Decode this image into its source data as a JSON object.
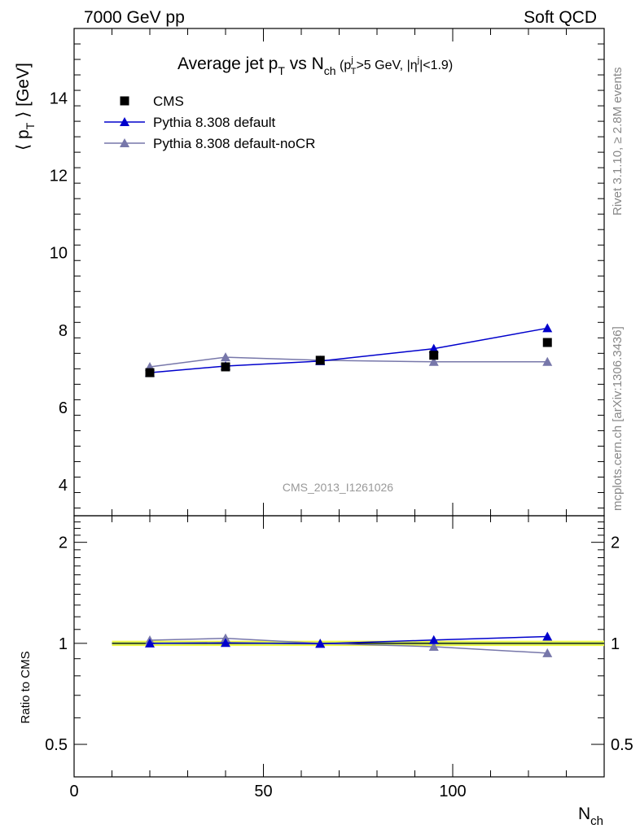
{
  "header": {
    "left": "7000 GeV pp",
    "right": "Soft QCD"
  },
  "side": {
    "rivet": "Rivet 3.1.10, ≥ 2.8M events",
    "source": "mcplots.cern.ch [arXiv:1306.3436]"
  },
  "watermark": "CMS_2013_I1261026",
  "title": {
    "main": "Average jet p",
    "main_sub": "T",
    "vs": " vs N",
    "vs_sub": "ch",
    "cut_open": " (p",
    "cut_sup": "j",
    "cut_sub": "T",
    "cut_mid": ">5 GeV, |η",
    "cut_sup2": "j",
    "cut_end": "|<1.9)"
  },
  "ylabel_main": "⟨ pₜ ⟩ [GeV]",
  "ylabel_main_parts": {
    "pre": "⟨ p",
    "sub": "T",
    "post": " ⟩ [GeV]"
  },
  "ylabel_ratio": "Ratio to CMS",
  "xlabel": {
    "main": "N",
    "sub": "ch"
  },
  "colors": {
    "cms": "#000000",
    "default": "#0000cc",
    "nocr": "#7777aa",
    "band_yellow": "#eef542",
    "band_green": "#b7e87a"
  },
  "chart_data": [
    {
      "type": "line",
      "panel": "main",
      "xlim": [
        0,
        140
      ],
      "ylim": [
        3.2,
        15.8
      ],
      "yticks": [
        4,
        6,
        8,
        10,
        12,
        14
      ],
      "series": [
        {
          "name": "CMS",
          "marker": "square",
          "x": [
            20,
            40,
            65,
            95,
            125
          ],
          "y": [
            6.9,
            7.05,
            7.22,
            7.35,
            7.68
          ]
        },
        {
          "name": "Pythia 8.308 default",
          "marker": "triangle",
          "x": [
            20,
            40,
            65,
            95,
            125
          ],
          "y": [
            6.9,
            7.07,
            7.2,
            7.52,
            8.05
          ]
        },
        {
          "name": "Pythia 8.308 default-noCR",
          "marker": "triangle",
          "x": [
            20,
            40,
            65,
            95,
            125
          ],
          "y": [
            7.05,
            7.3,
            7.22,
            7.18,
            7.18
          ]
        }
      ],
      "legend_position": "top-left"
    },
    {
      "type": "line",
      "panel": "ratio",
      "xlim": [
        0,
        140
      ],
      "ylim": [
        0.4,
        2.4
      ],
      "scale": "log",
      "yticks": [
        0.5,
        1,
        2
      ],
      "ytick_labels": [
        "0.5",
        "1",
        "2"
      ],
      "xticks": [
        0,
        50,
        100
      ],
      "xtick_labels": [
        "0",
        "50",
        "100"
      ],
      "band_x": [
        10,
        140
      ],
      "series": [
        {
          "name": "Pythia 8.308 default",
          "x": [
            20,
            40,
            65,
            95,
            125
          ],
          "y": [
            1.0,
            1.003,
            0.997,
            1.023,
            1.048
          ]
        },
        {
          "name": "Pythia 8.308 default-noCR",
          "x": [
            20,
            40,
            65,
            95,
            125
          ],
          "y": [
            1.022,
            1.035,
            1.0,
            0.977,
            0.935
          ]
        }
      ]
    }
  ]
}
